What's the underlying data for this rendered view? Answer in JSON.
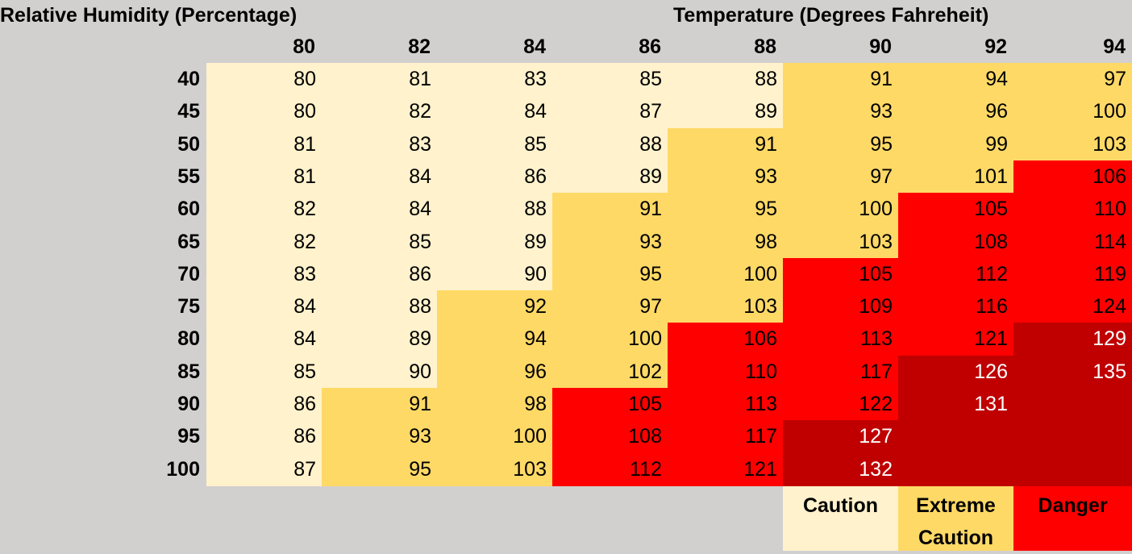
{
  "chart_data": {
    "type": "heatmap",
    "row_axis_label": "Relative Humidity (Percentage)",
    "col_axis_label": "Temperature (Degrees Fahreheit)",
    "columns": [
      "80",
      "82",
      "84",
      "86",
      "88",
      "90",
      "92",
      "94"
    ],
    "rows": [
      "40",
      "45",
      "50",
      "55",
      "60",
      "65",
      "70",
      "75",
      "80",
      "85",
      "90",
      "95",
      "100"
    ],
    "values": [
      [
        80,
        81,
        83,
        85,
        88,
        91,
        94,
        97
      ],
      [
        80,
        82,
        84,
        87,
        89,
        93,
        96,
        100
      ],
      [
        81,
        83,
        85,
        88,
        91,
        95,
        99,
        103
      ],
      [
        81,
        84,
        86,
        89,
        93,
        97,
        101,
        106
      ],
      [
        82,
        84,
        88,
        91,
        95,
        100,
        105,
        110
      ],
      [
        82,
        85,
        89,
        93,
        98,
        103,
        108,
        114
      ],
      [
        83,
        86,
        90,
        95,
        100,
        105,
        112,
        119
      ],
      [
        84,
        88,
        92,
        97,
        103,
        109,
        116,
        124
      ],
      [
        84,
        89,
        94,
        100,
        106,
        113,
        121,
        129
      ],
      [
        85,
        90,
        96,
        102,
        110,
        117,
        126,
        135
      ],
      [
        86,
        91,
        98,
        105,
        113,
        122,
        131,
        null
      ],
      [
        86,
        93,
        100,
        108,
        117,
        127,
        null,
        null
      ],
      [
        87,
        95,
        103,
        112,
        121,
        132,
        null,
        null
      ]
    ],
    "levels": [
      [
        0,
        0,
        0,
        0,
        0,
        1,
        1,
        1
      ],
      [
        0,
        0,
        0,
        0,
        0,
        1,
        1,
        1
      ],
      [
        0,
        0,
        0,
        0,
        1,
        1,
        1,
        1
      ],
      [
        0,
        0,
        0,
        0,
        1,
        1,
        1,
        2
      ],
      [
        0,
        0,
        0,
        1,
        1,
        1,
        2,
        2
      ],
      [
        0,
        0,
        0,
        1,
        1,
        1,
        2,
        2
      ],
      [
        0,
        0,
        0,
        1,
        1,
        2,
        2,
        2
      ],
      [
        0,
        0,
        1,
        1,
        1,
        2,
        2,
        2
      ],
      [
        0,
        0,
        1,
        1,
        2,
        2,
        2,
        3
      ],
      [
        0,
        0,
        1,
        1,
        2,
        2,
        3,
        3
      ],
      [
        0,
        1,
        1,
        2,
        2,
        2,
        3,
        3
      ],
      [
        0,
        1,
        1,
        2,
        2,
        3,
        3,
        3
      ],
      [
        0,
        1,
        1,
        2,
        2,
        3,
        3,
        3
      ]
    ],
    "level_colors": [
      "#fff2cc",
      "#ffd966",
      "#ff0000",
      "#c00000"
    ],
    "level_text_colors": [
      "#000000",
      "#000000",
      "#000000",
      "#ffffff"
    ],
    "legend": [
      {
        "label_lines": [
          "Caution"
        ],
        "color": "#fff2cc"
      },
      {
        "label_lines": [
          "Extreme",
          "Caution"
        ],
        "color": "#ffd966"
      },
      {
        "label_lines": [
          "Danger"
        ],
        "color": "#ff0000"
      }
    ]
  }
}
